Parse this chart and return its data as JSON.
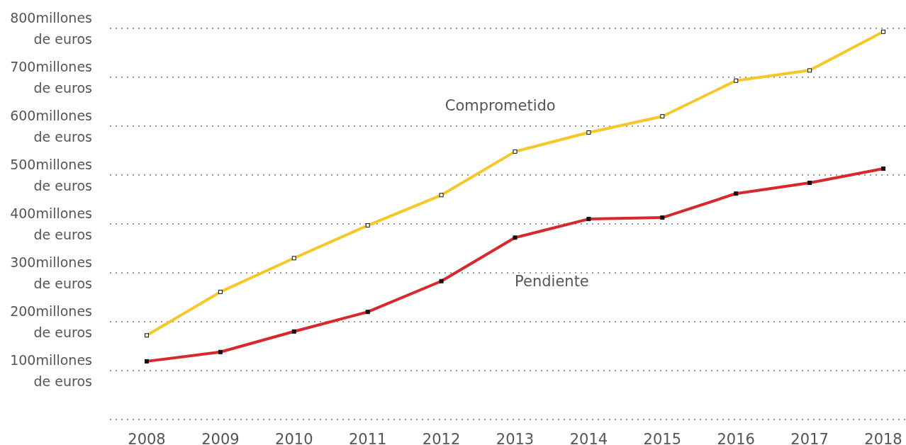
{
  "chart_data": {
    "type": "line",
    "categories": [
      "2008",
      "2009",
      "2010",
      "2011",
      "2012",
      "2013",
      "2014",
      "2015",
      "2016",
      "2017",
      "2018"
    ],
    "series": [
      {
        "name": "Comprometido",
        "color": "#f5c82a",
        "values": [
          172,
          261,
          330,
          397,
          459,
          548,
          587,
          620,
          693,
          714,
          793
        ]
      },
      {
        "name": "Pendiente",
        "color": "#d9272e",
        "values": [
          119,
          138,
          180,
          220,
          283,
          372,
          410,
          413,
          462,
          484,
          513
        ]
      }
    ],
    "ylim": [
      0,
      800
    ],
    "yticks": [
      {
        "value": 0,
        "label": null
      },
      {
        "value": 100,
        "label": "100millones\nde euros"
      },
      {
        "value": 200,
        "label": "200millones\nde euros"
      },
      {
        "value": 300,
        "label": "300millones\nde euros"
      },
      {
        "value": 400,
        "label": "400millones\nde euros"
      },
      {
        "value": 500,
        "label": "500millones\nde euros"
      },
      {
        "value": 600,
        "label": "600millones\nde euros"
      },
      {
        "value": 700,
        "label": "700millones\nde euros"
      },
      {
        "value": 800,
        "label": "800millones\nde euros"
      }
    ],
    "grid": "y",
    "marker": "square",
    "line_style": "solid"
  }
}
